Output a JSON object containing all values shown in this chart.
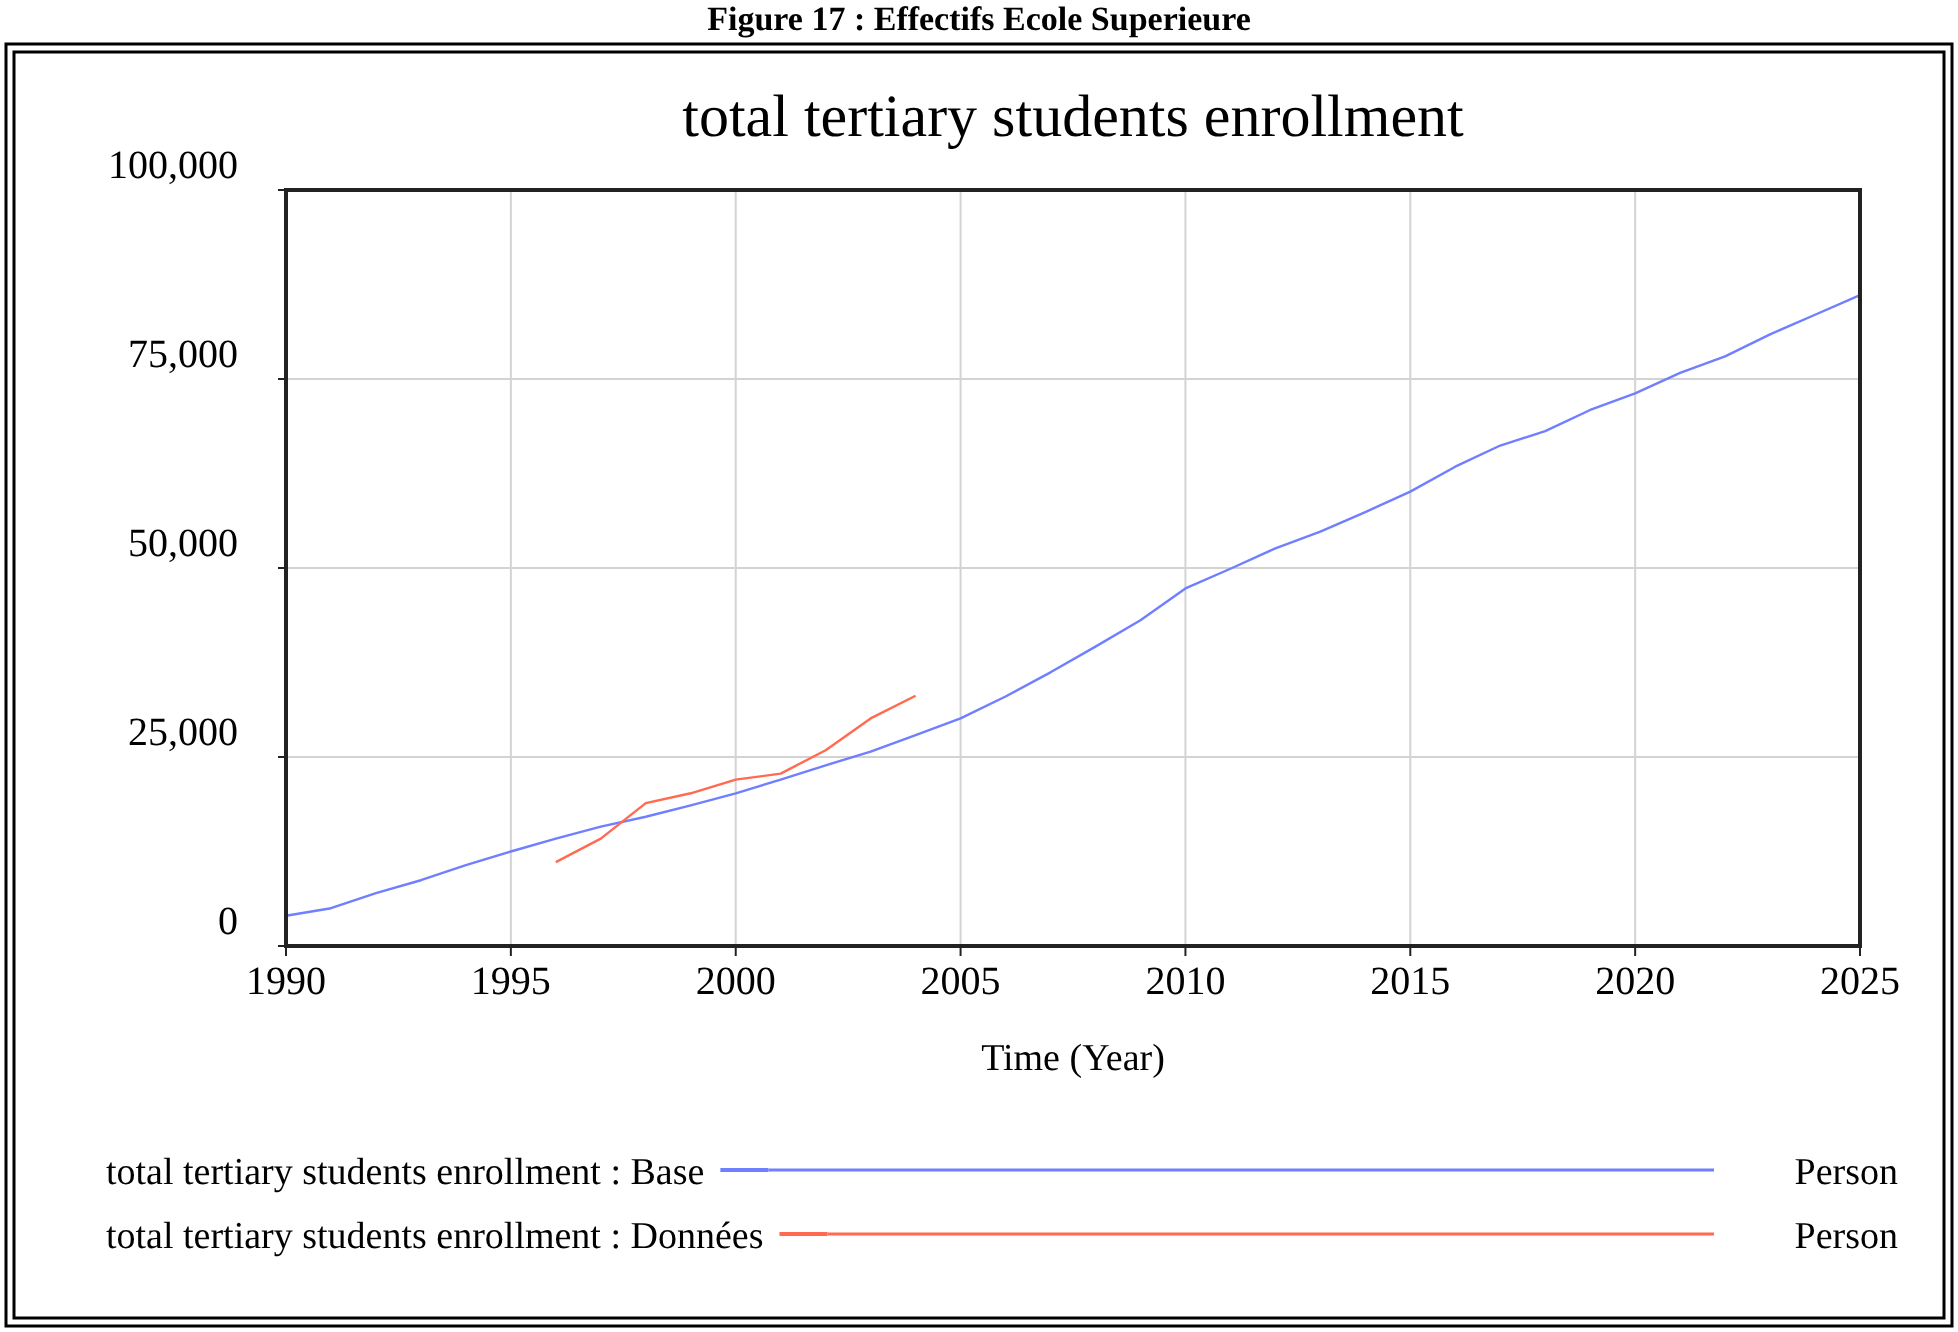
{
  "chart_data": {
    "type": "line",
    "title": "total tertiary students enrollment",
    "xlabel": "Time (Year)",
    "annotations": [
      "Figure 17 : Effectifs Ecole Superieure",
      "Person",
      "Person"
    ],
    "x": [
      1990,
      1991,
      1992,
      1993,
      1994,
      1995,
      1996,
      1997,
      1998,
      1999,
      2000,
      2001,
      2002,
      2003,
      2004,
      2005,
      2006,
      2007,
      2008,
      2009,
      2010,
      2011,
      2012,
      2013,
      2014,
      2015,
      2016,
      2017,
      2018,
      2019,
      2020,
      2021,
      2022,
      2023,
      2024,
      2025
    ],
    "series": [
      {
        "name": "total tertiary students enrollment : Base",
        "color": "#6f7fff",
        "values": [
          4000,
          5000,
          7000,
          8700,
          10700,
          12500,
          14200,
          15800,
          17100,
          18600,
          20200,
          22000,
          23900,
          25700,
          27900,
          30100,
          33000,
          36200,
          39600,
          43100,
          47300,
          49900,
          52600,
          54800,
          57400,
          60100,
          63400,
          66200,
          68100,
          70900,
          73100,
          75800,
          78000,
          80900,
          83500,
          86100
        ]
      },
      {
        "name": "total tertiary students enrollment : Données",
        "color": "#ff6a50",
        "values": [
          null,
          null,
          null,
          null,
          null,
          null,
          11100,
          14200,
          18900,
          20200,
          22000,
          22800,
          25900,
          30100,
          33100,
          null,
          null,
          null,
          null,
          null,
          null,
          null,
          null,
          null,
          null,
          null,
          null,
          null,
          null,
          null,
          null,
          null,
          null,
          null,
          null,
          null
        ]
      }
    ],
    "xlim": [
      1990,
      2025
    ],
    "xticks": [
      1990,
      1995,
      2000,
      2005,
      2010,
      2015,
      2020,
      2025
    ],
    "ylim": [
      0,
      100000
    ],
    "yticks": [
      {
        "value": 0,
        "label": "0"
      },
      {
        "value": 25000,
        "label": "25,000"
      },
      {
        "value": 50000,
        "label": "50,000"
      },
      {
        "value": 75000,
        "label": "75,000"
      },
      {
        "value": 100000,
        "label": "100,000"
      }
    ],
    "grid": true,
    "legend": "bottom",
    "line_style": "solid",
    "marker": "none"
  }
}
